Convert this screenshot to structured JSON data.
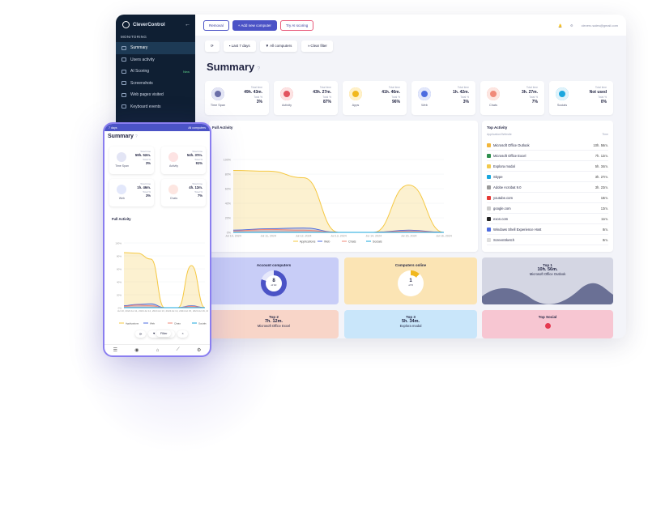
{
  "app": {
    "brand": "CleverControl",
    "section": "MONITORING",
    "back_icon": "arrow-left-icon",
    "menu": [
      {
        "label": "Summary",
        "icon": "grid-icon",
        "active": true
      },
      {
        "label": "Users activity",
        "icon": "users-icon"
      },
      {
        "label": "AI Scoring",
        "icon": "sparkle-icon",
        "badge": "New"
      },
      {
        "label": "Screenshots",
        "icon": "monitor-icon"
      },
      {
        "label": "Web pages visited",
        "icon": "globe-icon"
      },
      {
        "label": "Keyboard events",
        "icon": "keyboard-icon"
      }
    ]
  },
  "toolbar": {
    "removal": "Removal",
    "add_computer": "+ Add new computer",
    "try_ai": "Try AI scoring",
    "user_email": "cleverc.sales@gmail.com",
    "bell_icon": "bell-icon",
    "gear_icon": "gear-icon"
  },
  "filters": {
    "refresh_icon": "refresh-icon",
    "period": "Last 7 days",
    "computers": "All computers",
    "clear": "Clear filter"
  },
  "page_title": "Summary",
  "stat_cards": [
    {
      "label": "Time Span",
      "t1": "Total time",
      "v1": "49h. 43m.",
      "t2": "Total %",
      "v2": "3%",
      "color": "#e3e5f5",
      "icon_color": "#6b6fa8"
    },
    {
      "label": "Activity",
      "t1": "Total time",
      "v1": "43h. 27m.",
      "t2": "Total %",
      "v2": "87%",
      "color": "#fde3e3",
      "icon_color": "#e2545f"
    },
    {
      "label": "Apps",
      "t1": "Total time",
      "v1": "41h. 46m.",
      "t2": "Total %",
      "v2": "96%",
      "color": "#fff1c9",
      "icon_color": "#f1b81e"
    },
    {
      "label": "Web",
      "t1": "Total time",
      "v1": "1h. 42m.",
      "t2": "Total %",
      "v2": "3%",
      "color": "#e3e8fb",
      "icon_color": "#4d6ce0"
    },
    {
      "label": "Chats",
      "t1": "Total time",
      "v1": "3h. 27m.",
      "t2": "Total %",
      "v2": "7%",
      "color": "#fde6e1",
      "icon_color": "#f08a7a"
    },
    {
      "label": "Socials",
      "t1": "Total time",
      "v1": "Not used",
      "t2": "Total %",
      "v2": "0%",
      "color": "#dff3fb",
      "icon_color": "#1aa7de"
    }
  ],
  "full_activity": {
    "title": "Full Activity"
  },
  "chart_data": {
    "type": "area",
    "title": "Full Activity",
    "x": [
      "Jul 10, 2024",
      "Jul 11, 2024",
      "Jul 12, 2024",
      "Jul 13, 2024",
      "Jul 14, 2024",
      "Jul 15, 2024",
      "Jul 16, 2024"
    ],
    "yticks": [
      "0%",
      "20%",
      "40%",
      "60%",
      "80%",
      "100%"
    ],
    "ylim": [
      0,
      100
    ],
    "series": [
      {
        "name": "Applications",
        "color": "#f5c842",
        "values": [
          85,
          84,
          75,
          0,
          0,
          65,
          0
        ]
      },
      {
        "name": "Web",
        "color": "#4d6ce0",
        "values": [
          3,
          5,
          6,
          0,
          0,
          3,
          0
        ]
      },
      {
        "name": "Chats",
        "color": "#f08a7a",
        "values": [
          2,
          4,
          3,
          0,
          0,
          2,
          0
        ]
      },
      {
        "name": "Socials",
        "color": "#1aa7de",
        "values": [
          0,
          0,
          0,
          0,
          0,
          0,
          0
        ]
      }
    ],
    "legend": "bottom"
  },
  "top_activity": {
    "title": "Top Activity",
    "col_left": "Application/Website",
    "col_right": "Time",
    "rows": [
      {
        "name": "Microsoft Office Outlook",
        "time": "10h. 56m.",
        "color": "#f2b63c"
      },
      {
        "name": "Microsoft Office Excel",
        "time": "7h. 12m.",
        "color": "#2f8f4e"
      },
      {
        "name": "Explora modal",
        "time": "5h. 34m.",
        "color": "#f2c94c"
      },
      {
        "name": "Skype",
        "time": "3h. 27m.",
        "color": "#1aa7de"
      },
      {
        "name": "Adobe Acrobat 9.0",
        "time": "3h. 23m.",
        "color": "#999999"
      },
      {
        "name": "youtube.com",
        "time": "18m.",
        "color": "#e53935"
      },
      {
        "name": "google.com",
        "time": "13m.",
        "color": "#cccccc"
      },
      {
        "name": "exon.com",
        "time": "11m.",
        "color": "#222222"
      },
      {
        "name": "Windows Shell Experience Host",
        "time": "8m.",
        "color": "#4d6ce0"
      },
      {
        "name": "ScreenSketch",
        "time": "8m.",
        "color": "#dddddd"
      }
    ]
  },
  "tiles": {
    "account_title": "Account computers",
    "account_value": "8",
    "account_sub": "of 10",
    "online_title": "Computers online",
    "online_value": "1",
    "online_sub": "of 8",
    "top1_title": "Top 1",
    "top1_time": "10h. 56m.",
    "top1_app": "Microsoft Office Outlook",
    "top2_title": "Top 2",
    "top2_time": "7h. 12m.",
    "top2_app": "Microsoft Office Excel",
    "top3_title": "Top 3",
    "top3_time": "5h. 34m.",
    "top3_app": "Explora modal",
    "social_title": "Top Social"
  },
  "phone": {
    "status_left": "7 days",
    "status_right": "All computers",
    "title": "Summary",
    "cards": [
      {
        "label": "Time Span",
        "t1": "Total time",
        "v1": "59h. 52m.",
        "t2": "Total %",
        "v2": "3%",
        "color": "#e3e5f5"
      },
      {
        "label": "Activity",
        "t1": "Total time",
        "v1": "54h. 37m.",
        "t2": "Total %",
        "v2": "91%",
        "color": "#fde3e3"
      },
      {
        "label": "Web",
        "t1": "Total time",
        "v1": "1h. 46m.",
        "t2": "Total %",
        "v2": "3%",
        "color": "#e3e8fb"
      },
      {
        "label": "Chats",
        "t1": "Total time",
        "v1": "4h. 12m.",
        "t2": "Total %",
        "v2": "7%",
        "color": "#fde6e1"
      }
    ],
    "chart_title": "Full Activity",
    "filter": "Filter",
    "nav": [
      "menu-icon",
      "eye-icon",
      "home-icon",
      "chart-icon",
      "gear-icon"
    ]
  }
}
